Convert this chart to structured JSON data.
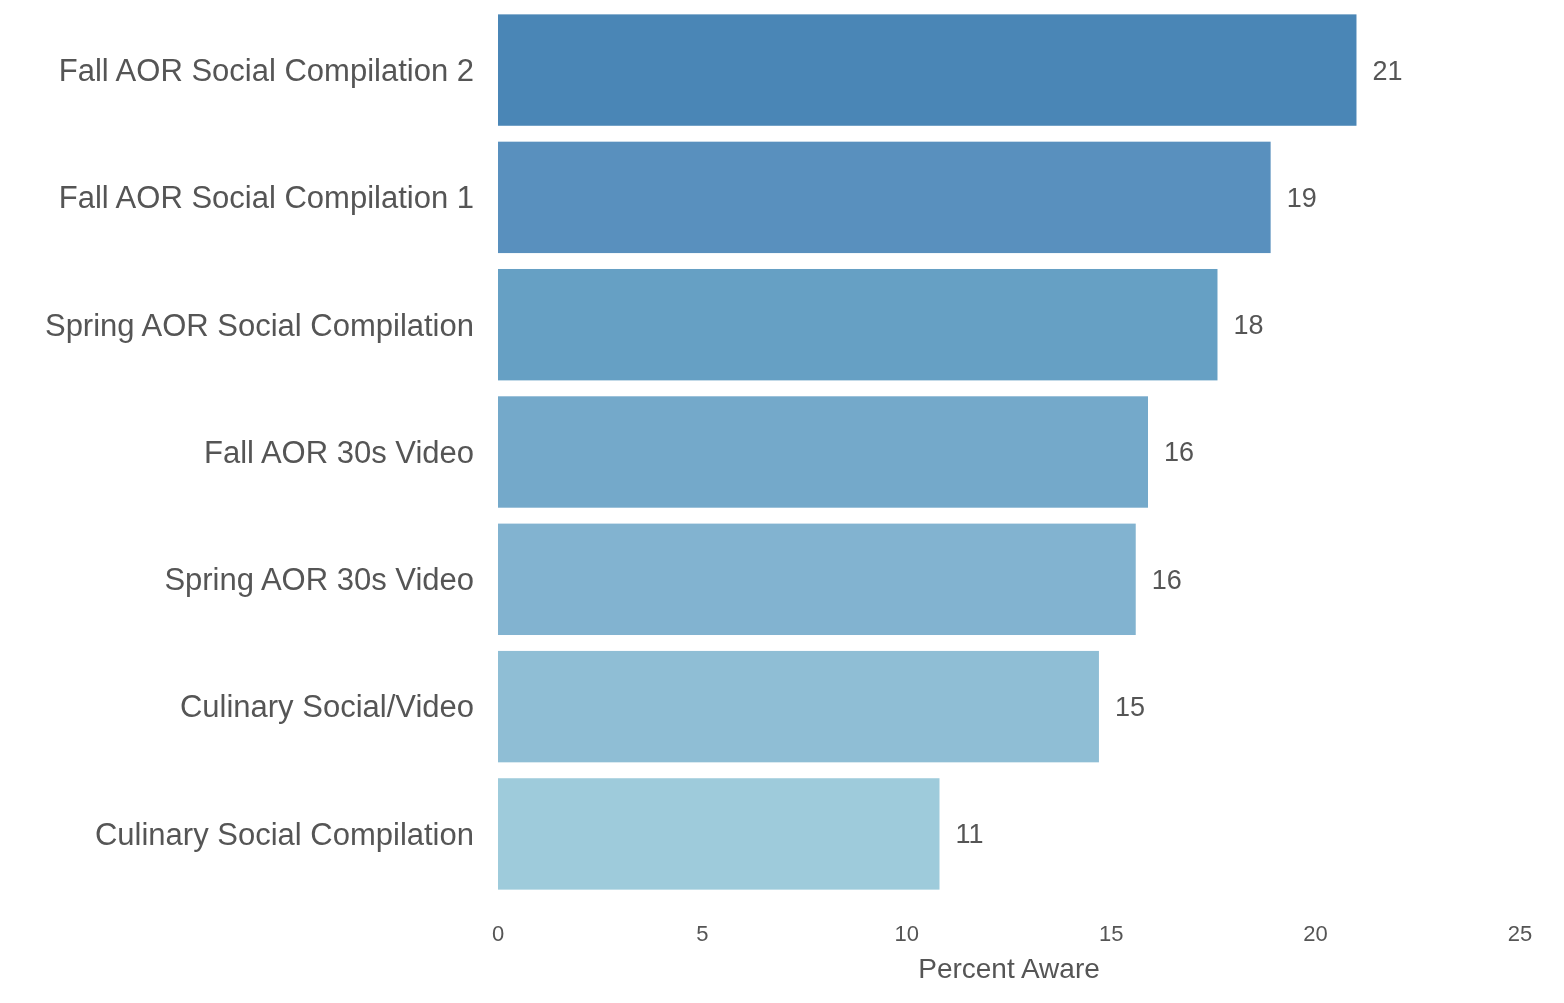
{
  "chart_data": {
    "type": "bar",
    "orientation": "horizontal",
    "xlabel": "Percent Aware",
    "categories": [
      "Fall AOR Social Compilation 2",
      "Fall AOR Social Compilation 1",
      "Spring AOR Social Compilation",
      "Fall AOR 30s Video",
      "Spring AOR 30s Video",
      "Culinary Social/Video",
      "Culinary Social Compilation"
    ],
    "values": [
      21.0,
      18.9,
      17.6,
      15.9,
      15.6,
      14.7,
      10.8
    ],
    "value_labels": [
      "21",
      "19",
      "18",
      "16",
      "16",
      "15",
      "11"
    ],
    "colors": [
      "#4a86b6",
      "#5990be",
      "#66a0c4",
      "#74a9ca",
      "#82b3d0",
      "#8fbed5",
      "#9ecbdb"
    ],
    "xlim": [
      0,
      25
    ],
    "xticks": [
      0,
      5,
      10,
      15,
      20,
      25
    ],
    "grid": false
  }
}
